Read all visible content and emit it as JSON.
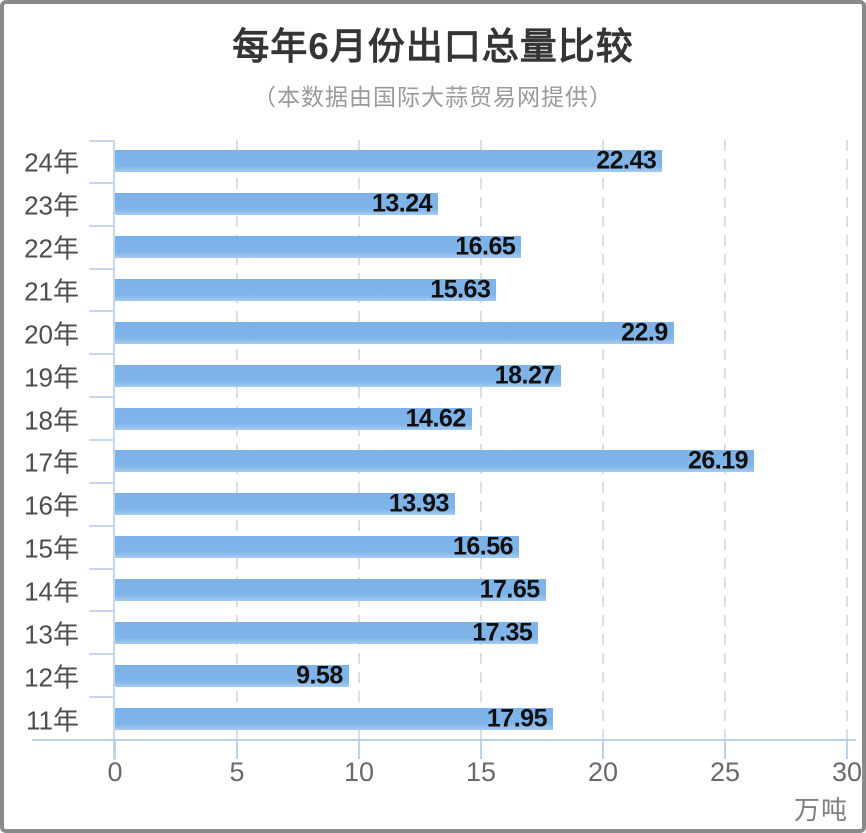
{
  "header": {
    "title": "每年6月份出口总量比较",
    "subtitle": "（本数据由国际大蒜贸易网提供）"
  },
  "chart_data": {
    "type": "bar",
    "orientation": "horizontal",
    "title": "每年6月份出口总量比较",
    "subtitle": "（本数据由国际大蒜贸易网提供）",
    "categories": [
      "24年",
      "23年",
      "22年",
      "21年",
      "20年",
      "19年",
      "18年",
      "17年",
      "16年",
      "15年",
      "14年",
      "13年",
      "12年",
      "11年"
    ],
    "values": [
      22.43,
      13.24,
      16.65,
      15.63,
      22.9,
      18.27,
      14.62,
      26.19,
      13.93,
      16.56,
      17.65,
      17.35,
      9.58,
      17.95
    ],
    "value_labels": [
      "22.43",
      "13.24",
      "16.65",
      "15.63",
      "22.9",
      "18.27",
      "14.62",
      "26.19",
      "13.93",
      "16.56",
      "17.65",
      "17.35",
      "9.58",
      "17.95"
    ],
    "xlabel": "万吨",
    "xticks": [
      0,
      5,
      10,
      15,
      20,
      25,
      30
    ],
    "xlim": [
      0,
      30
    ],
    "grid": true,
    "legend": false,
    "colors": {
      "bar": "#7db2e8",
      "bar_edge_light": "#a5cbf0",
      "axis": "#c7d8ec",
      "gridline": "#dedede",
      "value_label": "#101010",
      "category_label": "#4d4d4d",
      "tick_label": "#6a6a6a",
      "title": "#353535",
      "subtitle": "#9a9a9a"
    }
  }
}
